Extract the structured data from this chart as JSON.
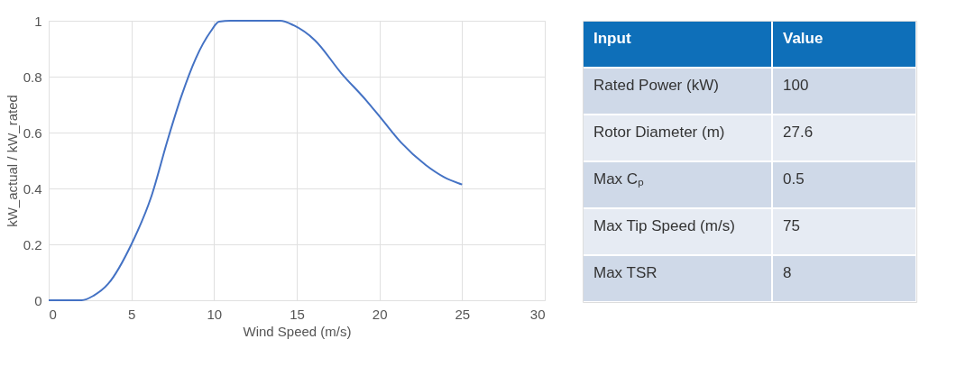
{
  "chart_data": [
    {
      "type": "line",
      "xlabel": "Wind Speed (m/s)",
      "ylabel": "kW_actual / kW_rated",
      "x": [
        0,
        1,
        2,
        2.7,
        3.6,
        5,
        6.2,
        7.2,
        8,
        8.9,
        9.8,
        10.3,
        11,
        12,
        13,
        14,
        14.8,
        16.1,
        17.7,
        19.2,
        20.1,
        21.3,
        22.8,
        23.9,
        25
      ],
      "series": [
        {
          "color": "#4472c4",
          "values": [
            0,
            0,
            0,
            0.016,
            0.059,
            0.2,
            0.37,
            0.575,
            0.726,
            0.866,
            0.962,
            0.997,
            1,
            1,
            1,
            1,
            0.984,
            0.93,
            0.812,
            0.715,
            0.651,
            0.565,
            0.484,
            0.441,
            0.414
          ]
        }
      ],
      "xlim": [
        0,
        30
      ],
      "xticks": [
        0,
        5,
        10,
        15,
        20,
        25,
        30
      ],
      "ylim": [
        0,
        1
      ],
      "yticks": [
        0,
        0.2,
        0.4,
        0.6,
        0.8,
        1
      ],
      "grid": true
    },
    {
      "type": "other",
      "annotations": [
        "Input",
        "Value",
        "Rated Power (kW)",
        "100",
        "Rotor Diameter (m)",
        "27.6",
        "Max Cₚ",
        "0.5",
        "Max Tip Speed (m/s)",
        "75",
        "Max TSR",
        "8"
      ]
    }
  ]
}
